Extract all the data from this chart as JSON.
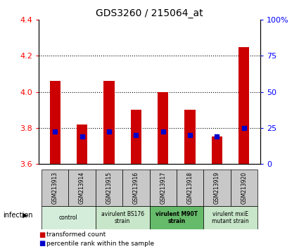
{
  "title": "GDS3260 / 215064_at",
  "samples": [
    "GSM213913",
    "GSM213914",
    "GSM213915",
    "GSM213916",
    "GSM213917",
    "GSM213918",
    "GSM213919",
    "GSM213920"
  ],
  "red_values": [
    4.06,
    3.82,
    4.06,
    3.9,
    4.0,
    3.9,
    3.75,
    4.25
  ],
  "blue_values": [
    3.78,
    3.75,
    3.78,
    3.76,
    3.78,
    3.76,
    3.75,
    3.8
  ],
  "bar_bottom": 3.6,
  "ylim": [
    3.6,
    4.4
  ],
  "yticks_left": [
    3.6,
    3.8,
    4.0,
    4.2,
    4.4
  ],
  "yticks_right_labels": [
    "0",
    "25",
    "50",
    "75",
    "100%"
  ],
  "bar_color": "#cc0000",
  "blue_color": "#0000cc",
  "bar_width": 0.4,
  "bg_color": "#ffffff",
  "sample_bg": "#c8c8c8",
  "legend_items": [
    {
      "color": "#cc0000",
      "label": "transformed count"
    },
    {
      "color": "#0000cc",
      "label": "percentile rank within the sample"
    }
  ],
  "group_defs": [
    {
      "label": "control",
      "indices": [
        0,
        1
      ],
      "color": "#d4edda",
      "bold": false
    },
    {
      "label": "avirulent BS176\nstrain",
      "indices": [
        2,
        3
      ],
      "color": "#c8e6c9",
      "bold": false
    },
    {
      "label": "virulent M90T\nstrain",
      "indices": [
        4,
        5
      ],
      "color": "#66bb6a",
      "bold": true
    },
    {
      "label": "virulent mxiE\nmutant strain",
      "indices": [
        6,
        7
      ],
      "color": "#c8e6c9",
      "bold": false
    }
  ]
}
